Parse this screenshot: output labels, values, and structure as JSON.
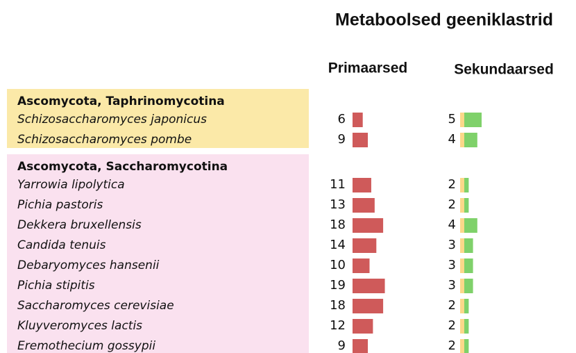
{
  "title": "Metaboolsed geeniklastrid",
  "columns": [
    "Primaarsed",
    "Sekundaarsed"
  ],
  "groups": [
    {
      "name": "Ascomycota, Taphrinomycotina",
      "color": "#fbe9a8",
      "rows": [
        {
          "species": "Schizosaccharomyces japonicus",
          "primary": 6,
          "secondary": 5
        },
        {
          "species": "Schizosaccharomyces pombe",
          "primary": 9,
          "secondary": 4
        }
      ]
    },
    {
      "name": "Ascomycota, Saccharomycotina",
      "color": "#fae1ef",
      "rows": [
        {
          "species": "Yarrowia lipolytica",
          "primary": 11,
          "secondary": 2
        },
        {
          "species": "Pichia pastoris",
          "primary": 13,
          "secondary": 2
        },
        {
          "species": "Dekkera bruxellensis",
          "primary": 18,
          "secondary": 4
        },
        {
          "species": "Candida tenuis",
          "primary": 14,
          "secondary": 3
        },
        {
          "species": "Debaryomyces hansenii",
          "primary": 10,
          "secondary": 3
        },
        {
          "species": "Pichia stipitis",
          "primary": 19,
          "secondary": 3
        },
        {
          "species": "Saccharomyces cerevisiae",
          "primary": 18,
          "secondary": 2
        },
        {
          "species": "Kluyveromyces lactis",
          "primary": 12,
          "secondary": 2
        },
        {
          "species": "Eremothecium gossypii",
          "primary": 9,
          "secondary": 2
        }
      ]
    }
  ]
}
